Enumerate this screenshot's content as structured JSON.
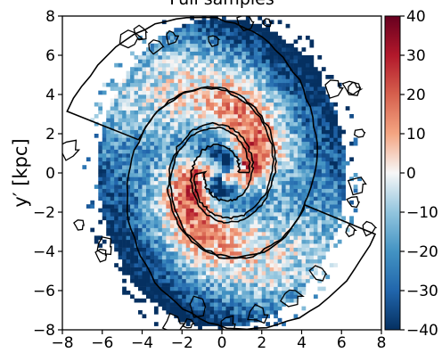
{
  "chart_data": {
    "type": "heatmap",
    "title": "Full samples",
    "xlabel": "",
    "ylabel": "y′ [kpc]",
    "xlim": [
      -8,
      8
    ],
    "ylim": [
      -8,
      8
    ],
    "x_ticks": [
      -8,
      -6,
      -4,
      -2,
      0,
      2,
      4,
      6,
      8
    ],
    "y_ticks": [
      -8,
      -6,
      -4,
      -2,
      0,
      2,
      4,
      6,
      8
    ],
    "colorbar": {
      "colormap": "RdBu_r",
      "range": [
        -40,
        40
      ],
      "ticks": [
        -40,
        -30,
        -20,
        -10,
        0,
        10,
        20,
        30,
        40
      ]
    },
    "colors": {
      "low": "#053061",
      "mid": "#f7f7f7",
      "high": "#67001f"
    },
    "grid": false,
    "contour": {
      "color": "#000000",
      "arms": [
        {
          "r0": 1.3,
          "theta0": 0.0,
          "pitch": 0.19,
          "turns": 1.45
        },
        {
          "r0": 1.3,
          "theta0": 3.1416,
          "pitch": 0.19,
          "turns": 1.45
        }
      ]
    }
  }
}
